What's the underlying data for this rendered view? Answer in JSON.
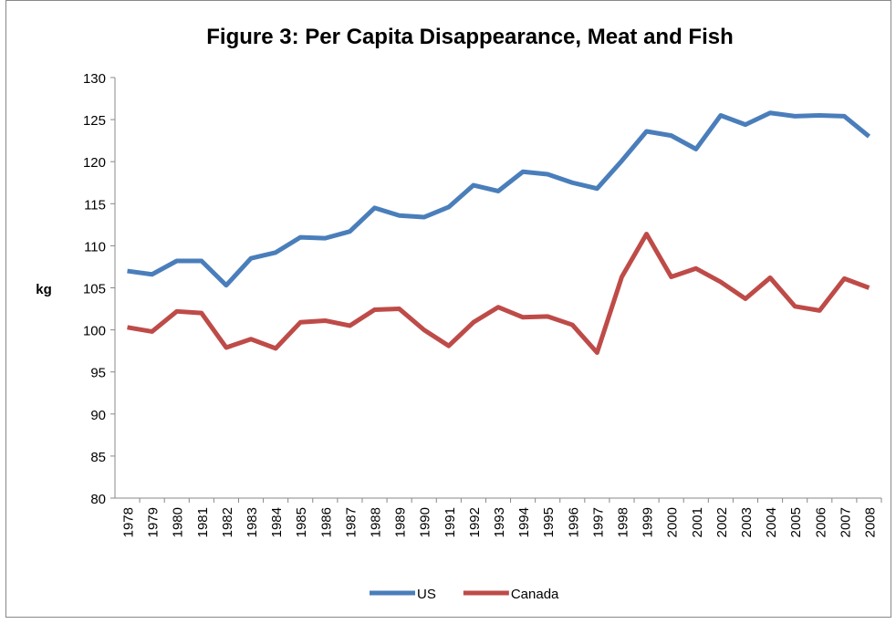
{
  "chart_data": {
    "type": "line",
    "title": "Figure 3: Per Capita Disappearance, Meat and Fish",
    "y_label": "kg",
    "categories": [
      "1978",
      "1979",
      "1980",
      "1981",
      "1982",
      "1983",
      "1984",
      "1985",
      "1986",
      "1987",
      "1988",
      "1989",
      "1990",
      "1991",
      "1992",
      "1993",
      "1994",
      "1995",
      "1996",
      "1997",
      "1998",
      "1999",
      "2000",
      "2001",
      "2002",
      "2003",
      "2004",
      "2005",
      "2006",
      "2007",
      "2008"
    ],
    "series": [
      {
        "name": "US",
        "color": "#4a7ebb",
        "values": [
          107.0,
          106.6,
          108.2,
          108.2,
          105.3,
          108.5,
          109.2,
          111.0,
          110.9,
          111.7,
          114.5,
          113.6,
          113.4,
          114.6,
          117.2,
          116.5,
          118.8,
          118.5,
          117.5,
          116.8,
          120.1,
          123.6,
          123.1,
          121.5,
          125.5,
          124.4,
          125.8,
          125.4,
          125.5,
          125.4,
          123.0
        ]
      },
      {
        "name": "Canada",
        "color": "#be4b48",
        "values": [
          100.3,
          99.8,
          102.2,
          102.0,
          97.9,
          98.9,
          97.8,
          100.9,
          101.1,
          100.5,
          102.4,
          102.5,
          100.0,
          98.1,
          100.9,
          102.7,
          101.5,
          101.6,
          100.6,
          97.3,
          106.3,
          111.4,
          106.3,
          107.3,
          105.7,
          103.7,
          106.2,
          102.8,
          102.3,
          106.1,
          105.0
        ]
      }
    ],
    "ylim": [
      80,
      130
    ],
    "yticks": [
      80,
      85,
      90,
      95,
      100,
      105,
      110,
      115,
      120,
      125,
      130
    ],
    "grid": false,
    "legend": "bottom"
  }
}
